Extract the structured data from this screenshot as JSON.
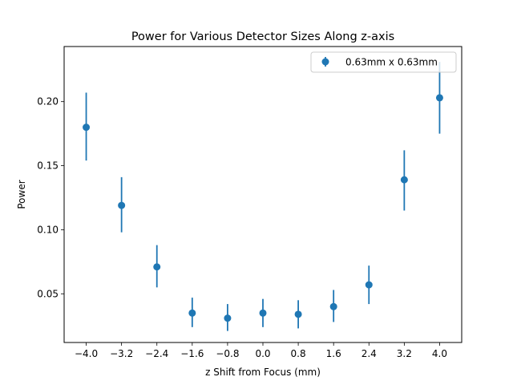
{
  "chart_data": {
    "type": "scatter",
    "title": "Power for Various Detector Sizes Along z-axis",
    "xlabel": "z Shift from Focus (mm)",
    "ylabel": "Power",
    "xlim": [
      -4.5,
      4.5
    ],
    "ylim": [
      0.012,
      0.243
    ],
    "xticks": [
      -4.0,
      -3.2,
      -2.4,
      -1.6,
      -0.8,
      0.0,
      0.8,
      1.6,
      2.4,
      3.2,
      4.0
    ],
    "xtick_labels": [
      "−4.0",
      "−3.2",
      "−2.4",
      "−1.6",
      "−0.8",
      "0.0",
      "0.8",
      "1.6",
      "2.4",
      "3.2",
      "4.0"
    ],
    "yticks": [
      0.05,
      0.1,
      0.15,
      0.2
    ],
    "ytick_labels": [
      "0.05",
      "0.10",
      "0.15",
      "0.20"
    ],
    "grid": false,
    "legend_position": "top-right",
    "series": [
      {
        "name": "0.63mm x 0.63mm",
        "color": "#1f77b4",
        "x": [
          -4.0,
          -3.2,
          -2.4,
          -1.6,
          -0.8,
          0.0,
          0.8,
          1.6,
          2.4,
          3.2,
          4.0
        ],
        "y": [
          0.18,
          0.119,
          0.071,
          0.035,
          0.031,
          0.035,
          0.034,
          0.04,
          0.057,
          0.139,
          0.203
        ],
        "err_low": [
          0.154,
          0.098,
          0.055,
          0.024,
          0.021,
          0.024,
          0.023,
          0.028,
          0.042,
          0.115,
          0.175
        ],
        "err_high": [
          0.207,
          0.141,
          0.088,
          0.047,
          0.042,
          0.046,
          0.045,
          0.053,
          0.072,
          0.162,
          0.231
        ]
      }
    ]
  }
}
